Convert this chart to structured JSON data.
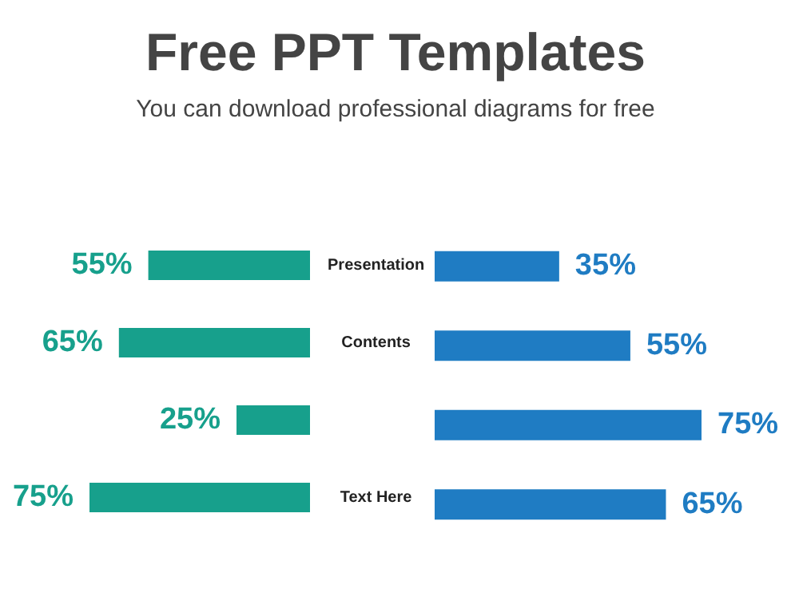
{
  "chart_data": [
    {
      "type": "bar",
      "orientation": "horizontal",
      "title": "Free PPT Templates",
      "subtitle": "You can download professional diagrams for free",
      "categories": [
        "Presentation",
        "Contents",
        null,
        "Text Here"
      ],
      "color": "#17a08c",
      "values": [
        55,
        65,
        25,
        75
      ],
      "value_labels": [
        "55%",
        "65%",
        "25%",
        "75%"
      ],
      "legend": false,
      "grid": false,
      "tick_labels": "y"
    },
    {
      "type": "bar",
      "orientation": "horizontal",
      "categories": [
        null,
        null,
        null,
        null
      ],
      "color": "#1f7cc3",
      "values": [
        35,
        55,
        75,
        65
      ],
      "value_labels": [
        "35%",
        "55%",
        "75%",
        "65%"
      ],
      "legend": false,
      "grid": false,
      "tick_labels": false
    }
  ]
}
